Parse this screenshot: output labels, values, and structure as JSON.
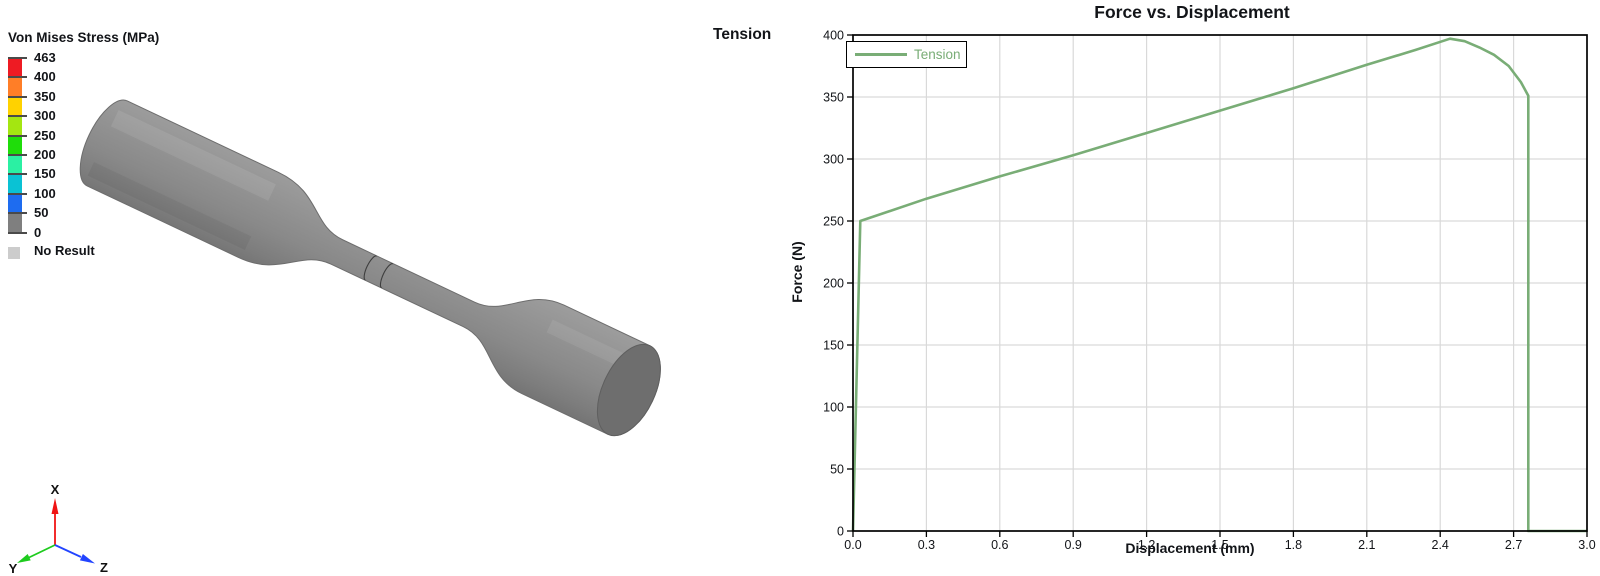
{
  "left_panel": {
    "stress_legend": {
      "title": "Von Mises Stress (MPa)",
      "labels": [
        "463",
        "400",
        "350",
        "300",
        "250",
        "200",
        "150",
        "100",
        "50",
        "0"
      ],
      "segment_colors": [
        "#ee1b23",
        "#ff7e27",
        "#ffd200",
        "#a4e611",
        "#1fdd0a",
        "#2bf0a3",
        "#0ac2d4",
        "#1e6cf0",
        "#7f7f7f"
      ],
      "tick_color": "#4a4a4a",
      "no_result_label": "No Result",
      "no_result_color": "#cccccc"
    },
    "specimen": {
      "description": "gray 3D tensile dogbone specimen viewed isometrically",
      "body_color": "#8a8a8a",
      "end_face_color": "#6e6e6e"
    },
    "triad": {
      "x_label": "X",
      "y_label": "Y",
      "z_label": "Z",
      "x_color": "#f01414",
      "y_color": "#1ecb1e",
      "z_color": "#2244ff"
    }
  },
  "chart": {
    "group_label": "Tension"
  },
  "chart_data": {
    "type": "line",
    "title": "Force vs. Displacement",
    "xlabel": "Displacement (mm)",
    "ylabel": "Force (N)",
    "xlim": [
      0.0,
      3.0
    ],
    "ylim": [
      0,
      400
    ],
    "x_ticks": [
      "0.0",
      "0.3",
      "0.6",
      "0.9",
      "1.2",
      "1.5",
      "1.8",
      "2.1",
      "2.4",
      "2.7",
      "3.0"
    ],
    "y_ticks": [
      "0",
      "50",
      "100",
      "150",
      "200",
      "250",
      "300",
      "350",
      "400"
    ],
    "grid": true,
    "grid_color": "#d9d9d9",
    "legend": {
      "position": "top-left",
      "entries": [
        {
          "label": "Tension",
          "color": "#79ad76"
        }
      ]
    },
    "series": [
      {
        "name": "Tension",
        "color": "#79ad76",
        "points": [
          [
            0.0,
            0
          ],
          [
            0.03,
            250
          ],
          [
            0.3,
            268
          ],
          [
            0.6,
            286
          ],
          [
            0.9,
            303
          ],
          [
            1.2,
            321
          ],
          [
            1.5,
            339
          ],
          [
            1.8,
            357
          ],
          [
            2.1,
            376
          ],
          [
            2.3,
            388
          ],
          [
            2.44,
            397
          ],
          [
            2.5,
            395
          ],
          [
            2.56,
            390
          ],
          [
            2.62,
            384
          ],
          [
            2.68,
            375
          ],
          [
            2.73,
            362
          ],
          [
            2.76,
            351
          ],
          [
            2.76,
            0
          ],
          [
            3.0,
            0
          ]
        ]
      }
    ]
  }
}
